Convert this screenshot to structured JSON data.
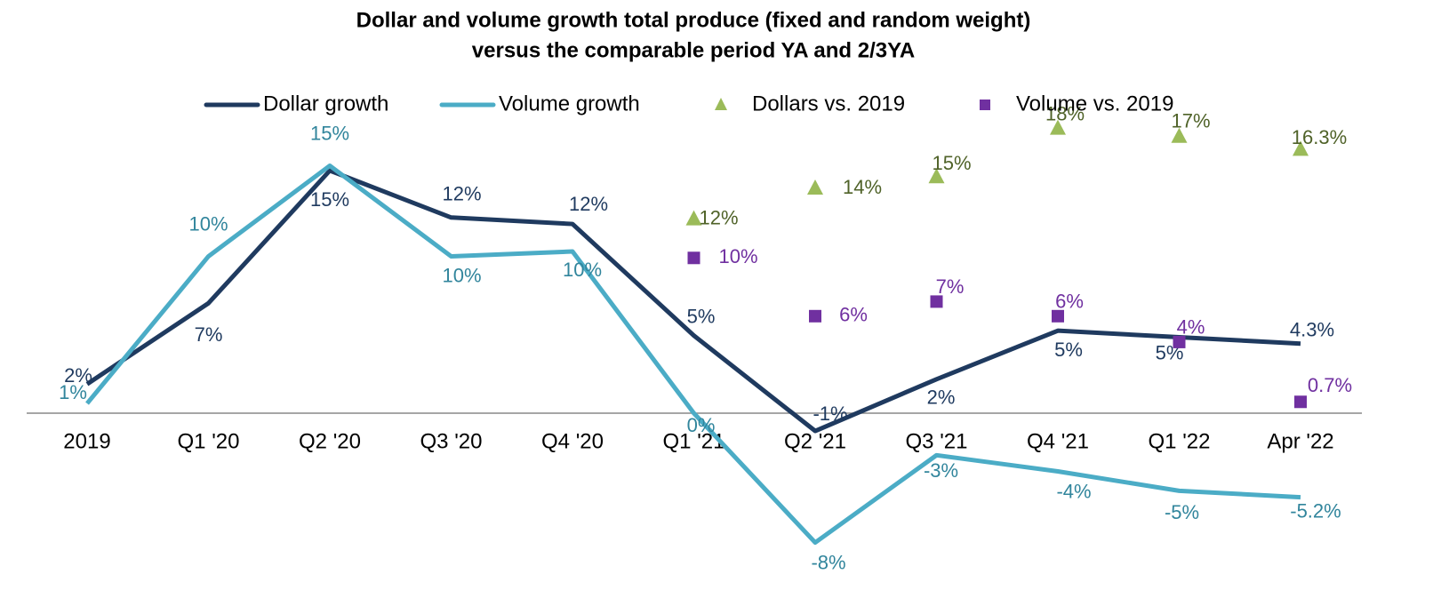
{
  "chart_data": {
    "type": "line",
    "title": [
      "Dollar and volume growth total produce (fixed and random weight)",
      "versus the comparable period YA and 2/3YA"
    ],
    "categories": [
      "2019",
      "Q1 '20",
      "Q2 '20",
      "Q3 '20",
      "Q4 '20",
      "Q1 '21",
      "Q2 '21",
      "Q3 '21",
      "Q4 '21",
      "Q1 '22",
      "Apr '22"
    ],
    "ylim": [
      -10,
      20
    ],
    "legend": "top",
    "series": [
      {
        "name": "Dollar growth",
        "color": "#1f3a5f",
        "label_color": "#1f3a5f",
        "marker": "line",
        "values": [
          1.8,
          6.8,
          15,
          12.1,
          11.7,
          4.8,
          -1.1,
          2.1,
          5.1,
          4.7,
          4.3
        ],
        "value_labels": [
          "2%",
          "7%",
          "15%",
          "12%",
          "12%",
          "5%",
          "-1%",
          "2%",
          "5%",
          "5%",
          "4.3%"
        ]
      },
      {
        "name": "Volume growth",
        "color": "#4bacc6",
        "label_color": "#31859c",
        "marker": "line",
        "values": [
          0.6,
          9.7,
          15.3,
          9.7,
          10.0,
          0,
          -8.0,
          -2.6,
          -3.6,
          -4.8,
          -5.2
        ],
        "value_labels": [
          "1%",
          "10%",
          "15%",
          "10%",
          "10%",
          "0%",
          "-8%",
          "-3%",
          "-4%",
          "-5%",
          "-5.2%"
        ]
      },
      {
        "name": "Dollars vs. 2019",
        "color": "#9bbb59",
        "label_color": "#4f6228",
        "marker": "triangle",
        "values": [
          null,
          null,
          null,
          null,
          null,
          12.0,
          13.9,
          14.6,
          17.6,
          17.1,
          16.3
        ],
        "value_labels": [
          null,
          null,
          null,
          null,
          null,
          "12%",
          "14%",
          "15%",
          "18%",
          "17%",
          "16.3%"
        ]
      },
      {
        "name": "Volume vs. 2019",
        "color": "#7030a0",
        "label_color": "#7030a0",
        "marker": "square",
        "values": [
          null,
          null,
          null,
          null,
          null,
          9.6,
          6.0,
          6.9,
          6.0,
          4.4,
          0.7
        ],
        "value_labels": [
          null,
          null,
          null,
          null,
          null,
          "10%",
          "6%",
          "7%",
          "6%",
          "4%",
          "0.7%"
        ]
      }
    ]
  }
}
